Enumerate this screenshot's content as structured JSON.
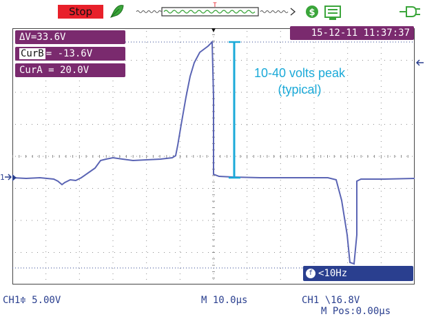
{
  "colors": {
    "waveform": "#5a64b4",
    "grid_dots": "#8a8a8a",
    "panel_purple": "#7a2a6e",
    "panel_blue": "#2a3f8f",
    "annotation_cyan": "#1aa9d8",
    "stop_red": "#e8202a",
    "icon_green": "#3aa53a"
  },
  "topbar": {
    "run_state": "Stop",
    "trigger_marker": "T"
  },
  "cursors": {
    "delta_v": "ΔV=33.6V",
    "cur_b_tag": "CurB",
    "cur_b_value": "= -13.6V",
    "cur_a": "CurA = 20.0V"
  },
  "datetime": "15-12-11 11:37:37",
  "annotation": {
    "line1": "10-40 volts peak",
    "line2": "(typical)"
  },
  "trigger_status": {
    "icon": "f",
    "text": "<10Hz"
  },
  "status_bar": {
    "ch1_scale": "CH1≑ 5.00V",
    "timebase": "M 10.0µs",
    "trigger": "CH1 \\16.8V",
    "m_pos": "M Pos:0.00µs"
  }
}
